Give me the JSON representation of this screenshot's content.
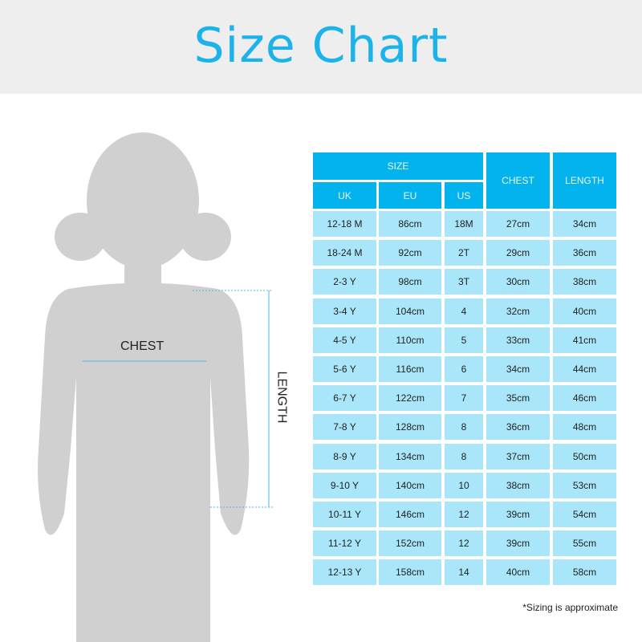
{
  "title": "Size Chart",
  "figure": {
    "chest_label": "CHEST",
    "length_label": "LENGTH"
  },
  "table": {
    "group_header": "SIZE",
    "headers": [
      "UK",
      "EU",
      "US",
      "CHEST",
      "LENGTH"
    ],
    "rows": [
      [
        "12-18 M",
        "86cm",
        "18M",
        "27cm",
        "34cm"
      ],
      [
        "18-24 M",
        "92cm",
        "2T",
        "29cm",
        "36cm"
      ],
      [
        "2-3 Y",
        "98cm",
        "3T",
        "30cm",
        "38cm"
      ],
      [
        "3-4 Y",
        "104cm",
        "4",
        "32cm",
        "40cm"
      ],
      [
        "4-5 Y",
        "110cm",
        "5",
        "33cm",
        "41cm"
      ],
      [
        "5-6 Y",
        "116cm",
        "6",
        "34cm",
        "44cm"
      ],
      [
        "6-7 Y",
        "122cm",
        "7",
        "35cm",
        "46cm"
      ],
      [
        "7-8 Y",
        "128cm",
        "8",
        "36cm",
        "48cm"
      ],
      [
        "8-9 Y",
        "134cm",
        "8",
        "37cm",
        "50cm"
      ],
      [
        "9-10 Y",
        "140cm",
        "10",
        "38cm",
        "53cm"
      ],
      [
        "10-11 Y",
        "146cm",
        "12",
        "39cm",
        "54cm"
      ],
      [
        "11-12 Y",
        "152cm",
        "12",
        "39cm",
        "55cm"
      ],
      [
        "12-13 Y",
        "158cm",
        "14",
        "40cm",
        "58cm"
      ]
    ]
  },
  "footnote": "*Sizing is approximate",
  "colors": {
    "accent": "#1cb2ea",
    "header_cell": "#03b3ee",
    "body_cell": "#a9e6fa",
    "silhouette": "#d0d0d0"
  }
}
